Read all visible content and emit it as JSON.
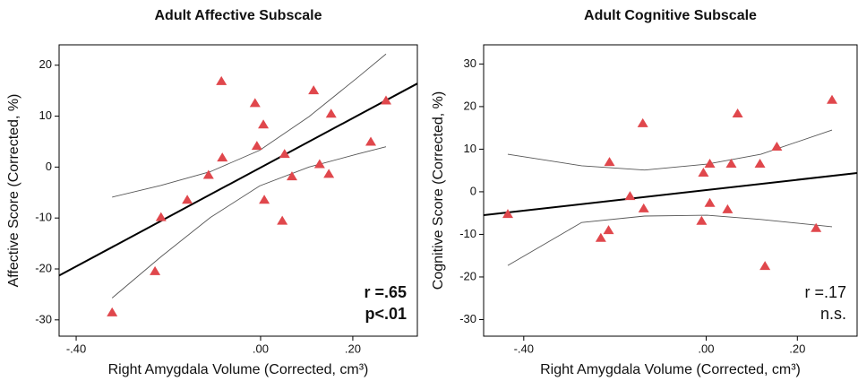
{
  "chart_data": [
    {
      "type": "scatter",
      "title": "Adult Affective Subscale",
      "x_label": "Right Amygdala Volume (Corrected, cm³)",
      "y_label": "Affective Score (Corrected, %)",
      "xlim": [
        -0.437,
        0.34
      ],
      "ylim": [
        -33.2,
        24
      ],
      "xticks": [
        {
          "value": -0.4,
          "label": "-.40"
        },
        {
          "value": 0,
          "label": ".00"
        },
        {
          "value": 0.2,
          "label": ".20"
        }
      ],
      "yticks": [
        -30,
        -20,
        -10,
        0,
        10,
        20
      ],
      "points": {
        "color": "#e0474c",
        "x": [
          -0.322,
          -0.216,
          -0.229,
          -0.159,
          -0.113,
          -0.085,
          -0.083,
          -0.012,
          -0.008,
          0.006,
          0.008,
          0.068,
          0.047,
          0.052,
          0.115,
          0.128,
          0.148,
          0.153,
          0.239,
          0.272
        ],
        "y": [
          -28.6,
          -9.9,
          -20.5,
          -6.5,
          -1.6,
          16.8,
          1.8,
          12.5,
          4.1,
          8.3,
          -6.5,
          -1.9,
          -10.6,
          2.5,
          15.0,
          0.5,
          -1.4,
          10.4,
          4.9,
          13.0
        ]
      },
      "fit": {
        "color": "#000000",
        "x": [
          -0.437,
          0.34
        ],
        "y": [
          -21.3,
          16.4
        ]
      },
      "ci_upper": {
        "color": "#555555",
        "x": [
          -0.322,
          -0.216,
          -0.109,
          -0.002,
          0.105,
          0.212,
          0.272
        ],
        "y": [
          -5.9,
          -3.6,
          -0.9,
          3.3,
          9.9,
          17.7,
          22.2
        ]
      },
      "ci_lower": {
        "color": "#555555",
        "x": [
          -0.322,
          -0.216,
          -0.109,
          -0.002,
          0.105,
          0.212,
          0.272
        ],
        "y": [
          -25.7,
          -17.6,
          -9.9,
          -3.7,
          0.0,
          2.6,
          4.0
        ]
      },
      "annotations": [
        "r =.65",
        "p<.01"
      ],
      "annotation_bold": true
    },
    {
      "type": "scatter",
      "title": "Adult Cognitive Subscale",
      "x_label": "Right Amygdala Volume (Corrected, cm³)",
      "y_label": "Cognitive Score (Corrected, %)",
      "xlim": [
        -0.488,
        0.331
      ],
      "ylim": [
        -33.9,
        34.5
      ],
      "xticks": [
        {
          "value": -0.4,
          "label": "-.40"
        },
        {
          "value": 0,
          "label": ".00"
        },
        {
          "value": 0.2,
          "label": ".20"
        }
      ],
      "yticks": [
        -30,
        -20,
        -10,
        0,
        10,
        20,
        30
      ],
      "points": {
        "color": "#e0474c",
        "x": [
          -0.435,
          -0.231,
          -0.214,
          -0.212,
          -0.167,
          -0.139,
          -0.137,
          -0.01,
          -0.006,
          0.008,
          0.008,
          0.069,
          0.047,
          0.055,
          0.118,
          0.129,
          0.155,
          0.241,
          0.276
        ],
        "y": [
          -5.3,
          -10.9,
          -9.1,
          6.9,
          -1.1,
          16.0,
          -4.0,
          -6.9,
          4.4,
          6.5,
          -2.7,
          18.3,
          -4.2,
          6.5,
          6.5,
          -17.5,
          10.5,
          -8.6,
          21.5
        ]
      },
      "fit": {
        "color": "#000000",
        "x": [
          -0.488,
          0.331
        ],
        "y": [
          -5.5,
          4.4
        ]
      },
      "ci_upper": {
        "color": "#555555",
        "x": [
          -0.435,
          -0.273,
          -0.135,
          0.002,
          0.12,
          0.276
        ],
        "y": [
          8.8,
          6.1,
          5.1,
          6.5,
          8.8,
          14.5
        ]
      },
      "ci_lower": {
        "color": "#555555",
        "x": [
          -0.435,
          -0.273,
          -0.135,
          0.002,
          0.12,
          0.276
        ],
        "y": [
          -17.3,
          -7.2,
          -5.7,
          -5.5,
          -6.5,
          -8.2
        ]
      },
      "annotations": [
        "r =.17",
        "n.s."
      ],
      "annotation_bold": false
    }
  ]
}
